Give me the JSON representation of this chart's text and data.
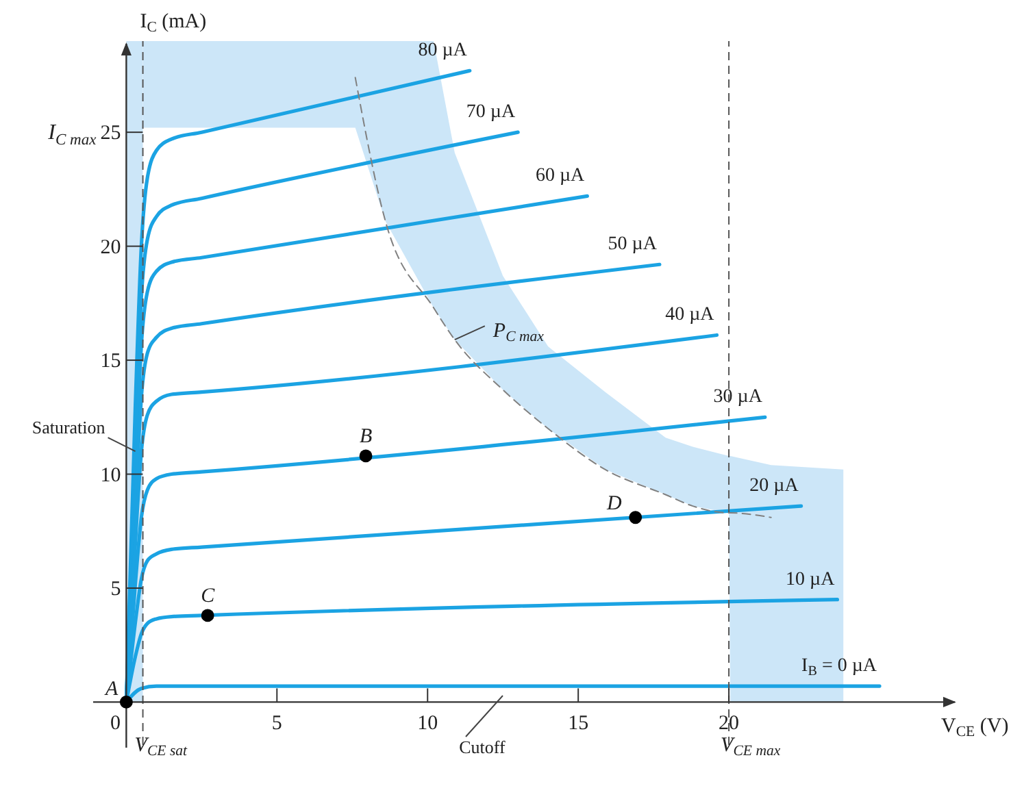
{
  "chart_data": {
    "type": "line",
    "xlabel": "V$_{CE}$ (V)",
    "ylabel": "I$_{C}$ (mA)",
    "xlim": [
      -1.1,
      27.5
    ],
    "ylim": [
      -2,
      29
    ],
    "xticks": [
      0,
      5,
      10,
      15,
      20
    ],
    "yticks": [
      5,
      10,
      15,
      20,
      25
    ],
    "series": [
      {
        "name": "80 µA",
        "color": "#1ba3e3",
        "x": [
          0,
          0.3,
          0.5,
          0.7,
          1.0,
          1.5,
          2.5,
          11.4
        ],
        "values": [
          0,
          13,
          20,
          23,
          24.2,
          24.7,
          25.0,
          27.7
        ]
      },
      {
        "name": "70 µA",
        "color": "#1ba3e3",
        "x": [
          0,
          0.3,
          0.5,
          0.7,
          1.0,
          1.5,
          2.5,
          13.0
        ],
        "values": [
          0,
          11.5,
          17.8,
          20.3,
          21.3,
          21.8,
          22.1,
          25.0
        ]
      },
      {
        "name": "60 µA",
        "color": "#1ba3e3",
        "x": [
          0,
          0.3,
          0.5,
          0.7,
          1.0,
          1.5,
          2.5,
          15.3
        ],
        "values": [
          0,
          10,
          15.7,
          18,
          18.9,
          19.3,
          19.5,
          22.2
        ]
      },
      {
        "name": "50 µA",
        "color": "#1ba3e3",
        "x": [
          0,
          0.3,
          0.5,
          0.7,
          1.0,
          1.5,
          2.5,
          17.7
        ],
        "values": [
          0,
          8.5,
          13.4,
          15.3,
          16.0,
          16.4,
          16.6,
          19.2
        ]
      },
      {
        "name": "40 µA",
        "color": "#1ba3e3",
        "x": [
          0,
          0.3,
          0.5,
          0.7,
          1.0,
          1.5,
          2.5,
          19.6
        ],
        "values": [
          0,
          7,
          11,
          12.6,
          13.2,
          13.5,
          13.6,
          16.1
        ]
      },
      {
        "name": "30 µA",
        "color": "#1ba3e3",
        "x": [
          0,
          0.3,
          0.5,
          0.7,
          1.0,
          1.5,
          2.5,
          21.2
        ],
        "values": [
          0,
          5.2,
          8.1,
          9.3,
          9.8,
          10.0,
          10.1,
          12.5
        ]
      },
      {
        "name": "20 µA",
        "color": "#1ba3e3",
        "x": [
          0,
          0.3,
          0.5,
          0.7,
          1.0,
          1.5,
          2.5,
          22.4
        ],
        "values": [
          0,
          3.5,
          5.4,
          6.2,
          6.5,
          6.7,
          6.8,
          8.6
        ]
      },
      {
        "name": "10 µA",
        "color": "#1ba3e3",
        "x": [
          0,
          0.3,
          0.5,
          0.7,
          1.0,
          1.5,
          2.5,
          23.6
        ],
        "values": [
          0,
          2,
          3,
          3.45,
          3.65,
          3.75,
          3.8,
          4.5
        ]
      },
      {
        "name": "I$_{B}$ = 0 µA",
        "color": "#1ba3e3",
        "x": [
          0,
          0.5,
          1,
          2,
          25
        ],
        "values": [
          0,
          0.6,
          0.7,
          0.7,
          0.7
        ]
      },
      {
        "type": "line",
        "line_style": "dashed",
        "color": "#808080",
        "x": [
          0.55,
          7.6,
          8.6,
          10.2,
          10.9,
          12.5,
          14,
          15.9,
          17.9,
          18.8,
          20,
          20.05,
          21.4,
          23.8
        ],
        "values": [
          null,
          27.4,
          21.1,
          17.3,
          15.9,
          13.7,
          12,
          10.2,
          9.1,
          8.6,
          8.3,
          8.3,
          8.1,
          null
        ],
        "lower": [
          25.2,
          25.2,
          21.1,
          17.3,
          15.9,
          13.7,
          12,
          10.2,
          9.1,
          8.6,
          8.3,
          0,
          0,
          0
        ],
        "upper": [
          29,
          29,
          29,
          29,
          24.1,
          18.7,
          15.6,
          13.6,
          11.6,
          11.2,
          10.8,
          10.8,
          10.4,
          10.2
        ]
      },
      {
        "type": "scatter",
        "marker": "circle",
        "color": "#000000",
        "x": [
          0,
          7.95,
          2.7,
          16.9
        ],
        "values": [
          0,
          10.8,
          3.8,
          8.1
        ]
      }
    ],
    "bands": [
      {
        "axis": "x",
        "from": 0,
        "to": 0.55,
        "color": "#cce6f8"
      }
    ],
    "ref_lines": [
      {
        "axis": "x",
        "value": 0.55,
        "label": "V$_{CE sat}$",
        "color": "#555555",
        "line_style": "dashed"
      },
      {
        "axis": "x",
        "value": 20,
        "label": "V$_{CE max}$",
        "color": "#555555",
        "line_style": "dashed"
      }
    ],
    "annotations": [
      {
        "text": "Saturation",
        "x": 0.3,
        "y": 11
      },
      "Cutoff",
      {
        "text": "P$_{C max}$",
        "x": 10.9,
        "y": 15.9
      },
      {
        "text": "A",
        "x": 0,
        "y": 0
      },
      {
        "text": "B",
        "x": 7.95,
        "y": 10.8
      },
      {
        "text": "C",
        "x": 2.7,
        "y": 3.8
      },
      {
        "text": "D",
        "x": 16.9,
        "y": 8.1
      },
      "I$_{C max}$"
    ]
  }
}
